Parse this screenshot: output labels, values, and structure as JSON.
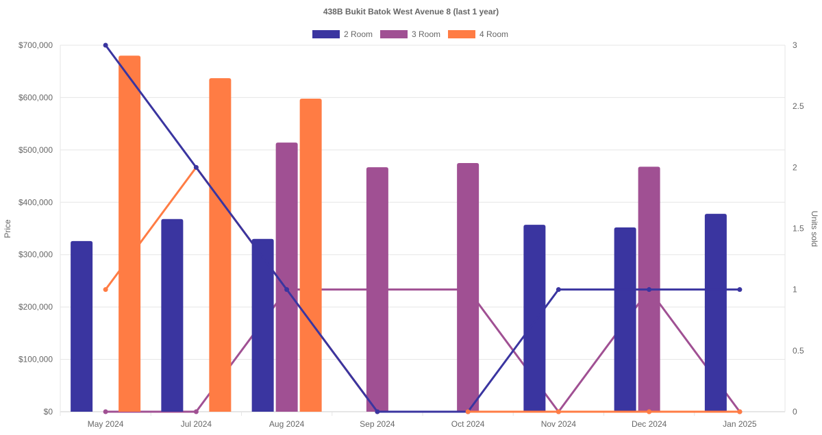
{
  "chart_data": {
    "type": "bar",
    "title": "438B Bukit Batok West Avenue 8 (last 1 year)",
    "categories": [
      "May 2024",
      "Jul 2024",
      "Aug 2024",
      "Sep 2024",
      "Oct 2024",
      "Nov 2024",
      "Dec 2024",
      "Jan 2025"
    ],
    "ylabel": "Price",
    "y2label": "Units sold",
    "ylim": [
      0,
      700000
    ],
    "y2lim": [
      0,
      3
    ],
    "y_ticks": [
      "$0",
      "$100,000",
      "$200,000",
      "$300,000",
      "$400,000",
      "$500,000",
      "$600,000",
      "$700,000"
    ],
    "y2_ticks": [
      "0",
      "0.5",
      "1",
      "1.5",
      "2",
      "2.5",
      "3"
    ],
    "legend_position": "top",
    "series": [
      {
        "name": "2 Room",
        "color": "#3a35a0",
        "price": [
          326000,
          368000,
          330000,
          null,
          null,
          357000,
          352000,
          378000
        ],
        "units": [
          3,
          2,
          1,
          0,
          0,
          1,
          1,
          1
        ]
      },
      {
        "name": "3 Room",
        "color": "#a05093",
        "price": [
          null,
          null,
          514000,
          467000,
          475000,
          null,
          468000,
          null
        ],
        "units": [
          0,
          0,
          1,
          1,
          1,
          0,
          1,
          0
        ]
      },
      {
        "name": "4 Room",
        "color": "#ff7c44",
        "price": [
          680000,
          637000,
          598000,
          null,
          null,
          null,
          null,
          null
        ],
        "units": [
          1,
          2,
          1,
          0,
          0,
          0,
          0,
          0
        ]
      }
    ]
  }
}
